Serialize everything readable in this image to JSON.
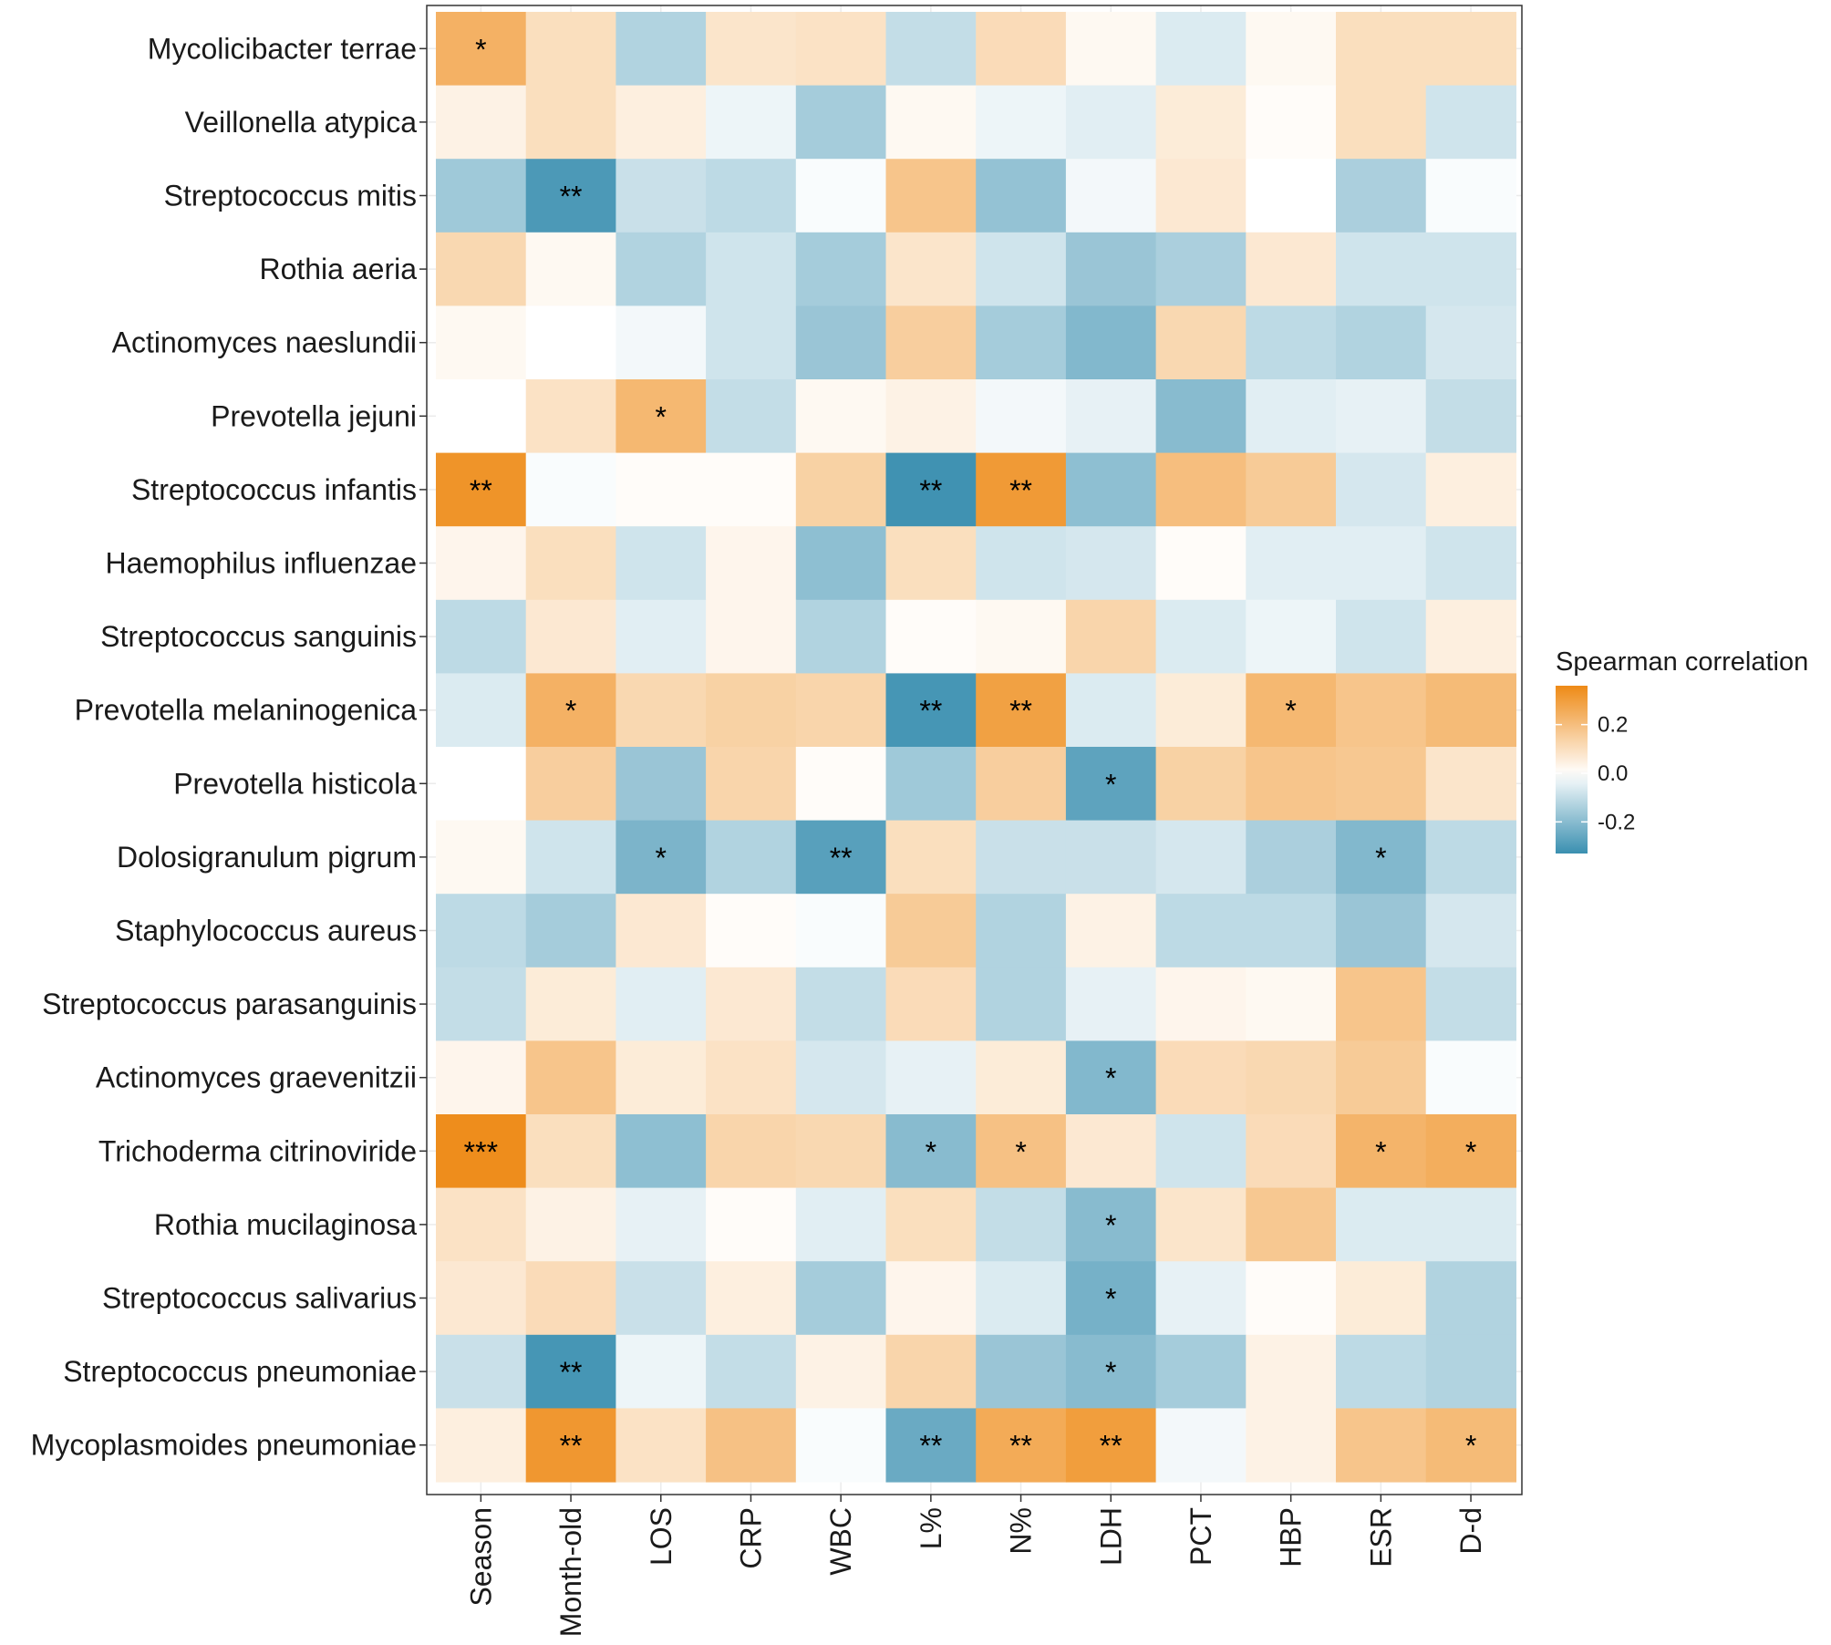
{
  "chart_data": {
    "type": "heatmap",
    "title": "",
    "xlabel": "",
    "ylabel": "",
    "rows": [
      "Mycolicibacter terrae",
      "Veillonella atypica",
      "Streptococcus mitis",
      "Rothia aeria",
      "Actinomyces naeslundii",
      "Prevotella jejuni",
      "Streptococcus infantis",
      "Haemophilus influenzae",
      "Streptococcus sanguinis",
      "Prevotella melaninogenica",
      "Prevotella histicola",
      "Dolosigranulum pigrum",
      "Staphylococcus aureus",
      "Streptococcus parasanguinis",
      "Actinomyces graevenitzii",
      "Trichoderma citrinoviride",
      "Rothia mucilaginosa",
      "Streptococcus salivarius",
      "Streptococcus pneumoniae",
      "Mycoplasmoides pneumoniae"
    ],
    "columns": [
      "Season",
      "Month-old",
      "LOS",
      "CRP",
      "WBC",
      "L%",
      "N%",
      "LDH",
      "PCT",
      "HBP",
      "ESR",
      "D-d"
    ],
    "values": [
      [
        0.24,
        0.1,
        -0.13,
        0.08,
        0.09,
        -0.1,
        0.11,
        0.02,
        -0.06,
        0.02,
        0.1,
        0.1
      ],
      [
        0.04,
        0.1,
        0.05,
        -0.03,
        -0.15,
        0.02,
        -0.03,
        -0.05,
        0.06,
        0.01,
        0.1,
        -0.08
      ],
      [
        -0.16,
        -0.3,
        -0.09,
        -0.11,
        -0.01,
        0.18,
        -0.18,
        -0.02,
        0.07,
        0.0,
        -0.14,
        -0.01
      ],
      [
        0.12,
        0.02,
        -0.13,
        -0.08,
        -0.15,
        0.08,
        -0.08,
        -0.17,
        -0.14,
        0.07,
        -0.08,
        -0.08
      ],
      [
        0.02,
        0.0,
        -0.02,
        -0.08,
        -0.17,
        0.15,
        -0.15,
        -0.21,
        0.12,
        -0.11,
        -0.13,
        -0.07
      ],
      [
        0.0,
        0.09,
        0.22,
        -0.1,
        0.02,
        0.04,
        -0.02,
        -0.04,
        -0.2,
        -0.05,
        -0.04,
        -0.1
      ],
      [
        0.33,
        -0.01,
        0.01,
        0.01,
        0.14,
        -0.32,
        0.31,
        -0.19,
        0.2,
        0.16,
        -0.07,
        0.05
      ],
      [
        0.03,
        0.1,
        -0.08,
        0.03,
        -0.19,
        0.1,
        -0.08,
        -0.07,
        0.01,
        -0.05,
        -0.05,
        -0.08
      ],
      [
        -0.11,
        0.07,
        -0.05,
        0.03,
        -0.13,
        0.01,
        0.02,
        0.13,
        -0.06,
        -0.03,
        -0.08,
        0.05
      ],
      [
        -0.06,
        0.24,
        0.12,
        0.14,
        0.13,
        -0.31,
        0.29,
        -0.06,
        0.06,
        0.22,
        0.18,
        0.21
      ],
      [
        0.0,
        0.15,
        -0.17,
        0.13,
        0.01,
        -0.16,
        0.15,
        -0.27,
        0.14,
        0.18,
        0.17,
        0.08
      ],
      [
        0.02,
        -0.08,
        -0.22,
        -0.13,
        -0.28,
        0.1,
        -0.09,
        -0.09,
        -0.07,
        -0.14,
        -0.21,
        -0.11
      ],
      [
        -0.11,
        -0.15,
        0.07,
        0.01,
        -0.01,
        0.16,
        -0.13,
        0.04,
        -0.11,
        -0.11,
        -0.17,
        -0.07
      ],
      [
        -0.1,
        0.06,
        -0.05,
        0.07,
        -0.1,
        0.11,
        -0.13,
        -0.04,
        0.03,
        0.02,
        0.18,
        -0.1
      ],
      [
        0.03,
        0.18,
        0.06,
        0.09,
        -0.07,
        -0.04,
        0.06,
        -0.21,
        0.11,
        0.12,
        0.16,
        -0.01
      ],
      [
        0.35,
        0.1,
        -0.19,
        0.13,
        0.12,
        -0.2,
        0.19,
        0.07,
        -0.08,
        0.11,
        0.23,
        0.25
      ],
      [
        0.09,
        0.04,
        -0.04,
        0.01,
        -0.05,
        0.1,
        -0.1,
        -0.2,
        0.08,
        0.17,
        -0.06,
        -0.06
      ],
      [
        0.07,
        0.11,
        -0.09,
        0.05,
        -0.15,
        0.03,
        -0.06,
        -0.23,
        -0.04,
        0.01,
        0.06,
        -0.13
      ],
      [
        -0.09,
        -0.31,
        -0.03,
        -0.1,
        0.04,
        0.13,
        -0.17,
        -0.2,
        -0.15,
        0.04,
        -0.11,
        -0.13
      ],
      [
        0.05,
        0.32,
        0.09,
        0.19,
        -0.01,
        -0.25,
        0.26,
        0.3,
        -0.02,
        0.04,
        0.18,
        0.21
      ]
    ],
    "significance": [
      [
        "*",
        "",
        "",
        "",
        "",
        "",
        "",
        "",
        "",
        "",
        "",
        ""
      ],
      [
        "",
        "",
        "",
        "",
        "",
        "",
        "",
        "",
        "",
        "",
        "",
        ""
      ],
      [
        "",
        "**",
        "",
        "",
        "",
        "",
        "",
        "",
        "",
        "",
        "",
        ""
      ],
      [
        "",
        "",
        "",
        "",
        "",
        "",
        "",
        "",
        "",
        "",
        "",
        ""
      ],
      [
        "",
        "",
        "",
        "",
        "",
        "",
        "",
        "",
        "",
        "",
        "",
        ""
      ],
      [
        "",
        "",
        "*",
        "",
        "",
        "",
        "",
        "",
        "",
        "",
        "",
        ""
      ],
      [
        "**",
        "",
        "",
        "",
        "",
        "**",
        "**",
        "",
        "",
        "",
        "",
        ""
      ],
      [
        "",
        "",
        "",
        "",
        "",
        "",
        "",
        "",
        "",
        "",
        "",
        ""
      ],
      [
        "",
        "",
        "",
        "",
        "",
        "",
        "",
        "",
        "",
        "",
        "",
        ""
      ],
      [
        "",
        "*",
        "",
        "",
        "",
        "**",
        "**",
        "",
        "",
        "*",
        "",
        ""
      ],
      [
        "",
        "",
        "",
        "",
        "",
        "",
        "",
        "*",
        "",
        "",
        "",
        ""
      ],
      [
        "",
        "",
        "*",
        "",
        "**",
        "",
        "",
        "",
        "",
        "",
        "*",
        ""
      ],
      [
        "",
        "",
        "",
        "",
        "",
        "",
        "",
        "",
        "",
        "",
        "",
        ""
      ],
      [
        "",
        "",
        "",
        "",
        "",
        "",
        "",
        "",
        "",
        "",
        "",
        ""
      ],
      [
        "",
        "",
        "",
        "",
        "",
        "",
        "",
        "*",
        "",
        "",
        "",
        ""
      ],
      [
        "***",
        "",
        "",
        "",
        "",
        "*",
        "*",
        "",
        "",
        "",
        "*",
        "*"
      ],
      [
        "",
        "",
        "",
        "",
        "",
        "",
        "",
        "*",
        "",
        "",
        "",
        ""
      ],
      [
        "",
        "",
        "",
        "",
        "",
        "",
        "",
        "*",
        "",
        "",
        "",
        ""
      ],
      [
        "",
        "**",
        "",
        "",
        "",
        "",
        "",
        "*",
        "",
        "",
        "",
        ""
      ],
      [
        "",
        "**",
        "",
        "",
        "",
        "**",
        "**",
        "**",
        "",
        "",
        "",
        "*"
      ]
    ],
    "legend": {
      "title": "Spearman correlation",
      "position": "right",
      "ticks": [
        0.2,
        0.0,
        -0.2
      ],
      "tick_labels": [
        "0.2",
        "0.0",
        "-0.2"
      ],
      "range": [
        -0.33,
        0.36
      ]
    },
    "colors": {
      "low": "#3a8fb0",
      "mid": "#ffffff",
      "high": "#ee8a16"
    }
  }
}
